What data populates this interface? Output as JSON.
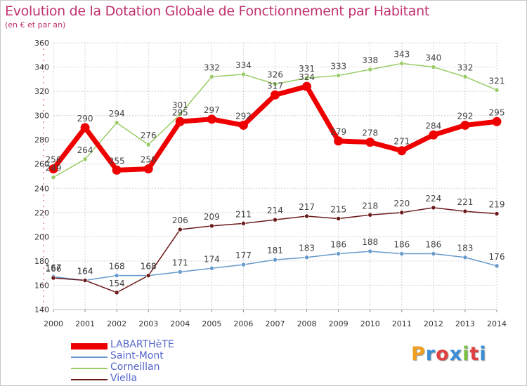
{
  "header": {
    "title": "Evolution de la Dotation Globale de Fonctionnement par Habitant",
    "subtitle": "(en € et par an)"
  },
  "logo": {
    "text": "Proxiti",
    "colors": [
      "#f0a020",
      "#3a8fd8",
      "#e04040",
      "#3a8fd8",
      "#7cc040",
      "#e04040",
      "#3a8fd8"
    ]
  },
  "chart_data": {
    "type": "line",
    "x": [
      "2000",
      "2001",
      "2002",
      "2003",
      "2004",
      "2005",
      "2006",
      "2007",
      "2008",
      "2009",
      "2010",
      "2011",
      "2012",
      "2013",
      "2014"
    ],
    "ylim": [
      140,
      360
    ],
    "yticks": [
      "140",
      "160",
      "180",
      "200",
      "220",
      "240",
      "260",
      "280",
      "300",
      "320",
      "340",
      "360"
    ],
    "grid": true,
    "legend_position": "bottom-left",
    "series": [
      {
        "name": "LABARTHèTE",
        "color": "#ee0000",
        "values": [
          256,
          290,
          255,
          256,
          295,
          297,
          292,
          317,
          324,
          279,
          278,
          271,
          284,
          292,
          295
        ]
      },
      {
        "name": "Saint-Mont",
        "color": "#6699cc",
        "values": [
          167,
          164,
          168,
          168,
          171,
          174,
          177,
          181,
          183,
          186,
          188,
          186,
          186,
          183,
          176
        ]
      },
      {
        "name": "Corneillan",
        "color": "#99cc66",
        "values": [
          249,
          264,
          294,
          276,
          301,
          332,
          334,
          326,
          331,
          333,
          338,
          343,
          340,
          332,
          321
        ]
      },
      {
        "name": "Viella",
        "color": "#6b1a1a",
        "values": [
          166,
          164,
          154,
          168,
          206,
          209,
          211,
          214,
          217,
          215,
          218,
          220,
          224,
          221,
          219
        ]
      }
    ]
  }
}
